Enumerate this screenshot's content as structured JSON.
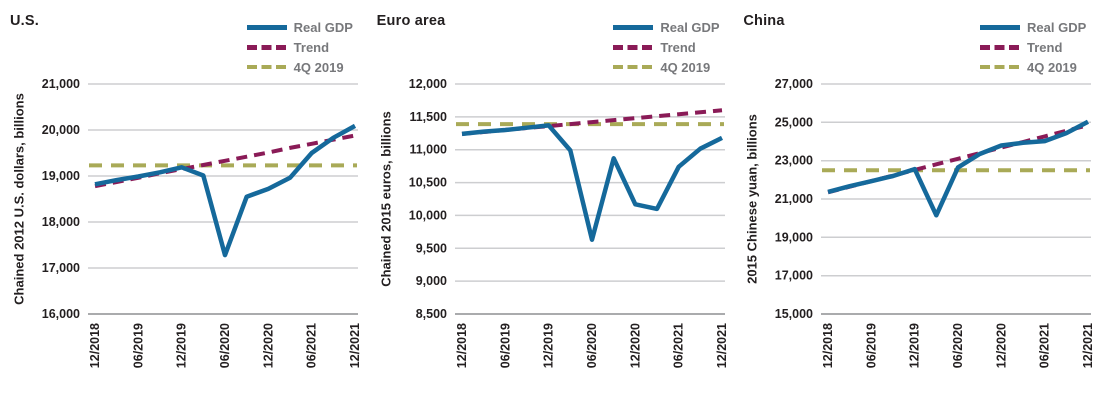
{
  "legend": {
    "items": [
      {
        "label": "Real GDP",
        "style": "solid"
      },
      {
        "label": "Trend",
        "style": "dashed"
      },
      {
        "label": "4Q 2019",
        "style": "dashed"
      }
    ]
  },
  "colors": {
    "real_gdp": "#15699b",
    "trend": "#8a1b57",
    "q4_2019": "#a9aa57",
    "legend_text": "#77787b",
    "text": "#231f20",
    "gridline": "#cdced0",
    "axis_line": "#8d8f92",
    "background": "#ffffff"
  },
  "chart_data": [
    {
      "type": "line",
      "title": "U.S.",
      "ylabel": "Chained 2012 U.S. dollars, billions",
      "ylim": [
        16000,
        21000
      ],
      "yticks": [
        21000,
        20000,
        19000,
        18000,
        17000,
        16000
      ],
      "grid": true,
      "legend_position": "top-right",
      "x_tick_labels": [
        "12/2018",
        "06/2019",
        "12/2019",
        "06/2020",
        "12/2020",
        "06/2021",
        "12/2021"
      ],
      "categories": [
        "12/2018",
        "03/2019",
        "06/2019",
        "09/2019",
        "12/2019",
        "03/2020",
        "06/2020",
        "09/2020",
        "12/2020",
        "03/2021",
        "06/2021",
        "09/2021",
        "12/2021"
      ],
      "series": [
        {
          "name": "Real GDP",
          "style": "solid",
          "color_key": "real_gdp",
          "values": [
            18820,
            18910,
            18990,
            19080,
            19190,
            19010,
            17280,
            18550,
            18720,
            18960,
            19500,
            19830,
            20090
          ]
        },
        {
          "name": "Trend",
          "style": "dashed",
          "color_key": "trend",
          "values": [
            18780,
            18870,
            18960,
            19060,
            19150,
            19240,
            19330,
            19420,
            19510,
            19610,
            19700,
            19790,
            19880
          ]
        },
        {
          "name": "4Q 2019",
          "style": "dashed-flat",
          "color_key": "q4_2019",
          "value": 19230
        }
      ]
    },
    {
      "type": "line",
      "title": "Euro area",
      "ylabel": "Chained 2015 euros, billions",
      "ylim": [
        8500,
        12000
      ],
      "yticks": [
        12000,
        11500,
        11000,
        10500,
        10000,
        9500,
        9000,
        8500
      ],
      "grid": true,
      "legend_position": "top-right",
      "x_tick_labels": [
        "12/2018",
        "06/2019",
        "12/2019",
        "06/2020",
        "12/2020",
        "06/2021",
        "12/2021"
      ],
      "categories": [
        "12/2018",
        "03/2019",
        "06/2019",
        "09/2019",
        "12/2019",
        "03/2020",
        "06/2020",
        "09/2020",
        "12/2020",
        "03/2021",
        "06/2021",
        "09/2021",
        "12/2021"
      ],
      "series": [
        {
          "name": "Real GDP",
          "style": "solid",
          "color_key": "real_gdp",
          "values": [
            11240,
            11275,
            11300,
            11335,
            11370,
            10990,
            9630,
            10870,
            10170,
            10100,
            10740,
            11015,
            11180
          ]
        },
        {
          "name": "Trend",
          "style": "dashed",
          "color_key": "trend",
          "values": [
            11240,
            11270,
            11300,
            11330,
            11360,
            11390,
            11420,
            11450,
            11480,
            11510,
            11540,
            11570,
            11600
          ]
        },
        {
          "name": "4Q 2019",
          "style": "dashed-flat",
          "color_key": "q4_2019",
          "value": 11390
        }
      ]
    },
    {
      "type": "line",
      "title": "China",
      "ylabel": "2015 Chinese yuan, billions",
      "ylim": [
        15000,
        27000
      ],
      "yticks": [
        27000,
        25000,
        23000,
        21000,
        19000,
        17000,
        15000
      ],
      "grid": true,
      "legend_position": "top-right",
      "x_tick_labels": [
        "12/2018",
        "06/2019",
        "12/2019",
        "06/2020",
        "12/2020",
        "06/2021",
        "12/2021"
      ],
      "categories": [
        "12/2018",
        "03/2019",
        "06/2019",
        "09/2019",
        "12/2019",
        "03/2020",
        "06/2020",
        "09/2020",
        "12/2020",
        "03/2021",
        "06/2021",
        "09/2021",
        "12/2021"
      ],
      "series": [
        {
          "name": "Real GDP",
          "style": "solid",
          "color_key": "real_gdp",
          "values": [
            21370,
            21670,
            21930,
            22200,
            22560,
            20150,
            22650,
            23350,
            23790,
            23930,
            24020,
            24440,
            25030
          ]
        },
        {
          "name": "Trend",
          "style": "dashed",
          "color_key": "trend",
          "values": [
            21350,
            21642,
            21933,
            22225,
            22517,
            22808,
            23100,
            23392,
            23683,
            23975,
            24267,
            24558,
            24850
          ]
        },
        {
          "name": "4Q 2019",
          "style": "dashed-flat",
          "color_key": "q4_2019",
          "value": 22500
        }
      ]
    }
  ]
}
